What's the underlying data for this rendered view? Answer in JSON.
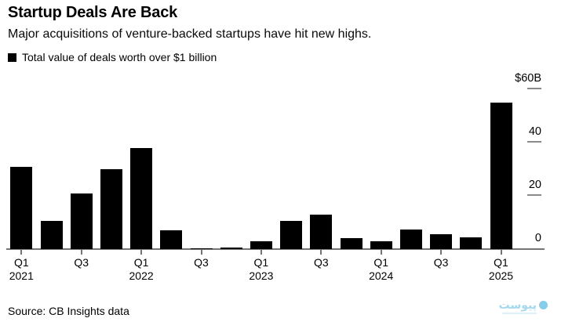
{
  "header": {
    "title": "Startup Deals Are Back",
    "subtitle": "Major acquisitions of venture-backed startups have hit new highs.",
    "legend": {
      "label": "Total value of deals worth over $1 billion",
      "swatch_color": "#000000"
    }
  },
  "chart_data": {
    "type": "bar",
    "title": "Startup Deals Are Back",
    "subtitle": "Major acquisitions of venture-backed startups have hit new highs.",
    "legend_entries": [
      "Total value of deals worth over $1 billion"
    ],
    "unit": "billions of US dollars",
    "categories": [
      "Q1 2021",
      "Q2 2021",
      "Q3 2021",
      "Q4 2021",
      "Q1 2022",
      "Q2 2022",
      "Q3 2022",
      "Q4 2022",
      "Q1 2023",
      "Q2 2023",
      "Q3 2023",
      "Q4 2023",
      "Q1 2024",
      "Q2 2024",
      "Q3 2024",
      "Q4 2024",
      "Q1 2025"
    ],
    "values": [
      31,
      10.5,
      21,
      30,
      38,
      7,
      0.4,
      0.5,
      3,
      10.5,
      13,
      4,
      3,
      7.5,
      5.5,
      4.5,
      55
    ],
    "ylim": [
      0,
      60
    ],
    "yticks": [
      {
        "label": "$60B",
        "value": 60,
        "dash": true
      },
      {
        "label": "40",
        "value": 40,
        "dash": true
      },
      {
        "label": "20",
        "value": 20,
        "dash": true
      },
      {
        "label": "0",
        "value": 0,
        "dash": false
      }
    ],
    "xticks": [
      {
        "label": "Q1",
        "year": "2021",
        "barIndex": 0
      },
      {
        "label": "Q3",
        "year": "",
        "barIndex": 2
      },
      {
        "label": "Q1",
        "year": "2022",
        "barIndex": 4
      },
      {
        "label": "Q3",
        "year": "",
        "barIndex": 6
      },
      {
        "label": "Q1",
        "year": "2023",
        "barIndex": 8
      },
      {
        "label": "Q3",
        "year": "",
        "barIndex": 10
      },
      {
        "label": "Q1",
        "year": "2024",
        "barIndex": 12
      },
      {
        "label": "Q3",
        "year": "",
        "barIndex": 14
      },
      {
        "label": "Q1",
        "year": "2025",
        "barIndex": 16
      }
    ],
    "bar_color": "#000000",
    "axis_side": "right",
    "grid": false,
    "legend_position": "top-left"
  },
  "footer": {
    "source": "Source: CB Insights data"
  },
  "watermark": {
    "text": "پیوست",
    "text_color": "#a5d8ef",
    "circle_color": "#85cde9",
    "subline_color": "#bfe5f5"
  }
}
